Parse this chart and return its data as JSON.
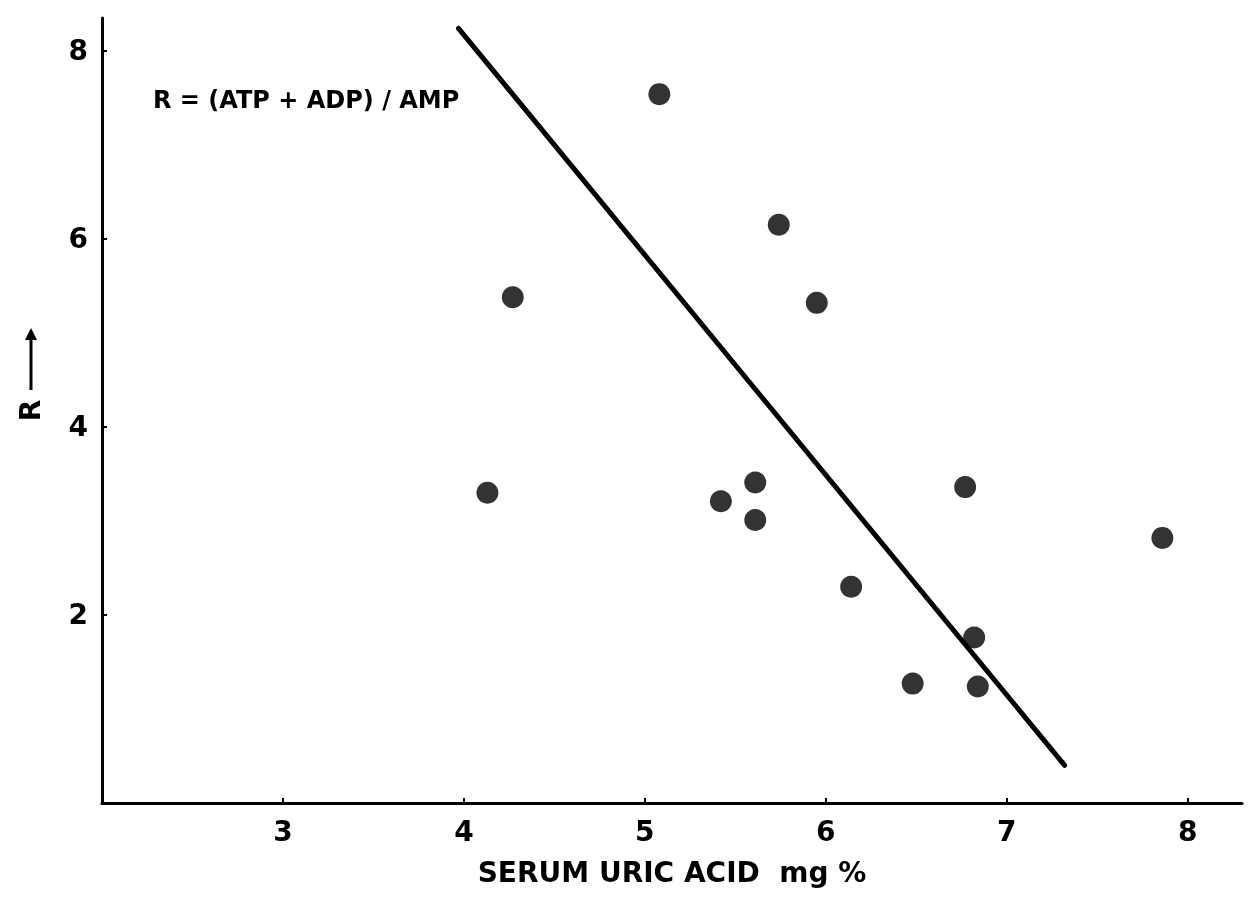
{
  "chart_data": {
    "type": "scatter",
    "xlabel": "SERUM URIC ACID  mg %",
    "ylabel": "R",
    "annotations": [
      "R = (ATP + ADP) / AMP"
    ],
    "x": [
      4.13,
      4.27,
      5.08,
      5.74,
      5.95,
      5.42,
      5.61,
      5.61,
      6.14,
      6.77,
      6.48,
      6.82,
      6.84,
      7.86
    ],
    "series": [
      {
        "color": "#000000",
        "values": [
          3.3,
          5.38,
          7.54,
          6.15,
          5.32,
          3.21,
          3.41,
          3.01,
          2.3,
          3.36,
          1.27,
          1.76,
          1.24,
          2.82
        ]
      },
      {
        "type": "line",
        "color": "#000000",
        "marker": "none",
        "x": [
          3.97,
          7.32
        ],
        "values": [
          8.24,
          0.4
        ]
      }
    ],
    "xlim": [
      2,
      8.3
    ],
    "ylim": [
      0,
      8.35
    ],
    "xticks": [
      3,
      4,
      5,
      6,
      7,
      8
    ],
    "yticks": [
      2,
      4,
      6,
      8
    ],
    "grid": false,
    "marker": "circle",
    "line_style": "solid"
  }
}
